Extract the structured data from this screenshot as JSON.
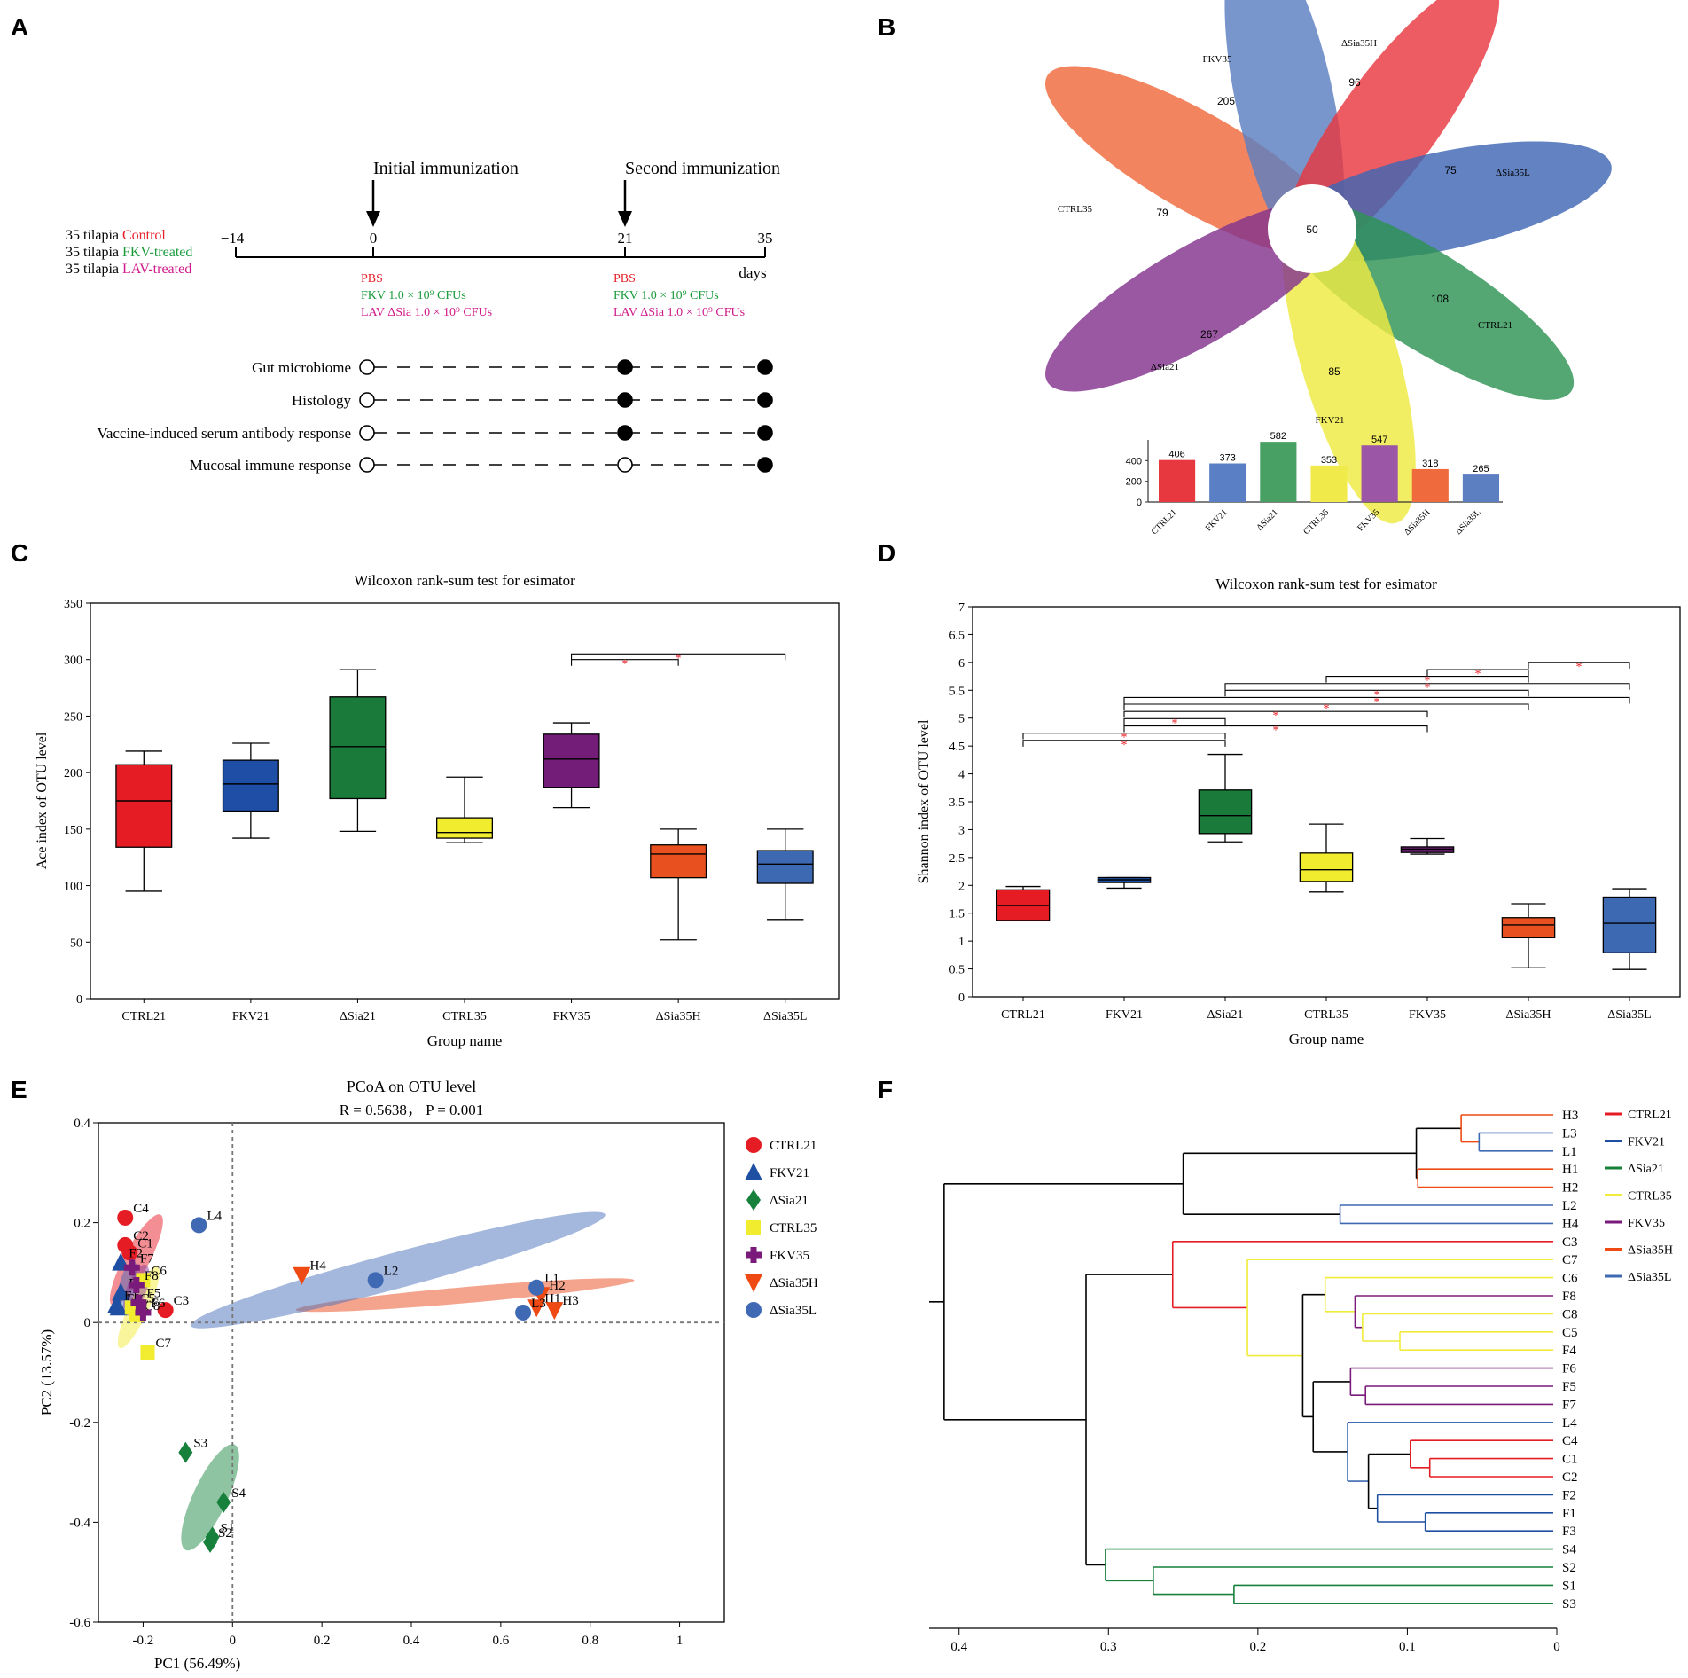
{
  "panel_labels": [
    "A",
    "B",
    "C",
    "D",
    "E",
    "F"
  ],
  "timeline": {
    "group_lines": [
      {
        "prefix": "35 tilapia",
        "label": "Control",
        "color": "#e8202a"
      },
      {
        "prefix": "35 tilapia",
        "label": "FKV-treated",
        "color": "#1a9b3c"
      },
      {
        "prefix": "35 tilapia",
        "label": "LAV-treated",
        "color": "#d0198a"
      }
    ],
    "ticks": [
      "−14",
      "0",
      "21",
      "35"
    ],
    "unit": "days",
    "events": [
      "Initial immunization",
      "Second immunization"
    ],
    "treatments_day0": [
      {
        "text": "PBS",
        "color": "#e8202a"
      },
      {
        "text": "FKV 1.0 × 10⁹ CFUs",
        "color": "#1a9b3c"
      },
      {
        "text": "LAV ΔSia 1.0 × 10⁹ CFUs",
        "color": "#d0198a"
      }
    ],
    "treatments_day21": [
      {
        "text": "PBS",
        "color": "#e8202a"
      },
      {
        "text": "FKV 1.0 × 10⁹ CFUs",
        "color": "#1a9b3c"
      },
      {
        "text": "LAV ΔSia 1.0 × 10⁹ CFUs",
        "color": "#d0198a"
      }
    ],
    "assays": [
      {
        "label": "Gut microbiome",
        "day0": false,
        "day21": true,
        "day35": true
      },
      {
        "label": "Histology",
        "day0": false,
        "day21": true,
        "day35": true
      },
      {
        "label": "Vaccine-induced serum antibody response",
        "day0": false,
        "day21": true,
        "day35": true
      },
      {
        "label": "Mucosal immune response",
        "day0": false,
        "day21": false,
        "day35": true
      }
    ]
  },
  "colors": {
    "CTRL21": "#e8202a",
    "FKV21": "#1f4fa3",
    "ΔSia21": "#17813c",
    "CTRL35": "#f2ec2f",
    "FKV35": "#7a1a7a",
    "ΔSia35H": "#ec4d1b",
    "ΔSia35L": "#3f6ab3"
  },
  "chart_data": [
    {
      "type": "flower",
      "title": "",
      "core_label": "50",
      "petals": [
        {
          "name": "ΔSia35H",
          "unique": 96,
          "color": "#ef6a3c"
        },
        {
          "name": "ΔSia35L",
          "unique": 75,
          "color": "#5b7fc1"
        },
        {
          "name": "CTRL21",
          "unique": 108,
          "color": "#e8383f"
        },
        {
          "name": "FKV21",
          "unique": 85,
          "color": "#3f66b3"
        },
        {
          "name": "ΔSia21",
          "unique": 267,
          "color": "#2e9254"
        },
        {
          "name": "CTRL35",
          "unique": 79,
          "color": "#eeea42"
        },
        {
          "name": "FKV35",
          "unique": 205,
          "color": "#84338f"
        }
      ],
      "bar": {
        "categories": [
          "CTRL21",
          "FKV21",
          "ΔSia21",
          "CTRL35",
          "FKV35",
          "ΔSia35H",
          "ΔSia35L"
        ],
        "values": [
          406,
          373,
          582,
          353,
          547,
          318,
          265
        ],
        "ylim": [
          0,
          600
        ],
        "yticks": [
          "0",
          "200",
          "400"
        ]
      }
    },
    {
      "type": "box",
      "title": "Wilcoxon rank-sum test for esimator",
      "xlabel": "Group name",
      "ylabel": "Ace index of OTU level",
      "ylim": [
        0,
        350
      ],
      "yticks": [
        "0",
        "50",
        "100",
        "150",
        "200",
        "250",
        "300",
        "350"
      ],
      "categories": [
        "CTRL21",
        "FKV21",
        "ΔSia21",
        "CTRL35",
        "FKV35",
        "ΔSia35H",
        "ΔSia35L"
      ],
      "boxes": [
        {
          "min": 95,
          "q1": 134,
          "median": 175,
          "q3": 207,
          "max": 219
        },
        {
          "min": 142,
          "q1": 166,
          "median": 190,
          "q3": 211,
          "max": 226
        },
        {
          "min": 148,
          "q1": 177,
          "median": 223,
          "q3": 267,
          "max": 291
        },
        {
          "min": 138,
          "q1": 142,
          "median": 147,
          "q3": 160,
          "max": 196
        },
        {
          "min": 169,
          "q1": 187,
          "median": 212,
          "q3": 234,
          "max": 244
        },
        {
          "min": 52,
          "q1": 107,
          "median": 128,
          "q3": 136,
          "max": 150
        },
        {
          "min": 70,
          "q1": 102,
          "median": 119,
          "q3": 131,
          "max": 150
        }
      ],
      "significance": [
        {
          "from": 4,
          "to": 5,
          "y": 300,
          "label": "*"
        },
        {
          "from": 4,
          "to": 6,
          "y": 305,
          "label": "*"
        }
      ]
    },
    {
      "type": "box",
      "title": "Wilcoxon rank-sum test for esimator",
      "xlabel": "Group name",
      "ylabel": "Shannon index of OTU level",
      "ylim": [
        0,
        7
      ],
      "yticks": [
        "0",
        "0.5",
        "1",
        "1.5",
        "2",
        "2.5",
        "3",
        "3.5",
        "4",
        "4.5",
        "5",
        "5.5",
        "6",
        "6.5",
        "7"
      ],
      "categories": [
        "CTRL21",
        "FKV21",
        "ΔSia21",
        "CTRL35",
        "FKV35",
        "ΔSia35H",
        "ΔSia35L"
      ],
      "boxes": [
        {
          "min": 1.37,
          "q1": 1.37,
          "median": 1.64,
          "q3": 1.92,
          "max": 1.98
        },
        {
          "min": 1.95,
          "q1": 2.05,
          "median": 2.1,
          "q3": 2.14,
          "max": 2.14
        },
        {
          "min": 2.78,
          "q1": 2.93,
          "median": 3.25,
          "q3": 3.71,
          "max": 4.35
        },
        {
          "min": 1.88,
          "q1": 2.07,
          "median": 2.28,
          "q3": 2.58,
          "max": 3.1
        },
        {
          "min": 2.56,
          "q1": 2.59,
          "median": 2.65,
          "q3": 2.69,
          "max": 2.84
        },
        {
          "min": 0.52,
          "q1": 1.06,
          "median": 1.29,
          "q3": 1.42,
          "max": 1.67
        },
        {
          "min": 0.49,
          "q1": 0.79,
          "median": 1.32,
          "q3": 1.79,
          "max": 1.94
        }
      ],
      "significance": [
        {
          "from": 5,
          "to": 6,
          "y": 6.0,
          "label": "*"
        },
        {
          "from": 4,
          "to": 5,
          "y": 5.87,
          "label": "*"
        },
        {
          "from": 3,
          "to": 5,
          "y": 5.75,
          "label": "*"
        },
        {
          "from": 2,
          "to": 6,
          "y": 5.62,
          "label": "*"
        },
        {
          "from": 2,
          "to": 5,
          "y": 5.5,
          "label": "*"
        },
        {
          "from": 1,
          "to": 6,
          "y": 5.37,
          "label": "*"
        },
        {
          "from": 1,
          "to": 5,
          "y": 5.25,
          "label": "*"
        },
        {
          "from": 1,
          "to": 4,
          "y": 5.12,
          "label": "*"
        },
        {
          "from": 1,
          "to": 2,
          "y": 4.99,
          "label": "*"
        },
        {
          "from": 1,
          "to": 4,
          "y": 4.86,
          "label": "*"
        },
        {
          "from": 0,
          "to": 2,
          "y": 4.73,
          "label": "*"
        },
        {
          "from": 0,
          "to": 2,
          "y": 4.6,
          "label": "*"
        }
      ]
    },
    {
      "type": "scatter",
      "title": "PCoA on OTU level",
      "subtitle": "R = 0.5638， P = 0.001",
      "xlabel": "PC1 (56.49%)",
      "ylabel": "PC2 (13.57%)",
      "xlim": [
        -0.3,
        1.1
      ],
      "ylim": [
        -0.6,
        0.4
      ],
      "xticks": [
        "-0.2",
        "0",
        "0.2",
        "0.4",
        "0.6",
        "0.8",
        "1"
      ],
      "yticks": [
        "-0.6",
        "-0.4",
        "-0.2",
        "0",
        "0.2",
        "0.4"
      ],
      "series": [
        {
          "name": "CTRL21",
          "marker": "circle",
          "points": [
            {
              "label": "C4",
              "x": -0.24,
              "y": 0.21
            },
            {
              "label": "C2",
              "x": -0.24,
              "y": 0.155
            },
            {
              "label": "C1",
              "x": -0.23,
              "y": 0.14
            },
            {
              "label": "C3",
              "x": -0.15,
              "y": 0.025
            }
          ]
        },
        {
          "name": "FKV21",
          "marker": "triangle",
          "points": [
            {
              "label": "F2",
              "x": -0.25,
              "y": 0.12
            },
            {
              "label": "F4",
              "x": -0.25,
              "y": 0.06
            },
            {
              "label": "F1",
              "x": -0.26,
              "y": 0.035
            },
            {
              "label": "F3",
              "x": -0.255,
              "y": 0.03
            }
          ]
        },
        {
          "name": "ΔSia21",
          "marker": "diamond",
          "points": [
            {
              "label": "S3",
              "x": -0.105,
              "y": -0.26
            },
            {
              "label": "S4",
              "x": -0.02,
              "y": -0.36
            },
            {
              "label": "S1",
              "x": -0.045,
              "y": -0.43
            },
            {
              "label": "S2",
              "x": -0.05,
              "y": -0.44
            }
          ]
        },
        {
          "name": "CTRL35",
          "marker": "square",
          "points": [
            {
              "label": "C6",
              "x": -0.2,
              "y": 0.085
            },
            {
              "label": "C5",
              "x": -0.225,
              "y": 0.03
            },
            {
              "label": "C8",
              "x": -0.215,
              "y": 0.015
            },
            {
              "label": "C7",
              "x": -0.19,
              "y": -0.06
            }
          ]
        },
        {
          "name": "FKV35",
          "marker": "cross",
          "points": [
            {
              "label": "F7",
              "x": -0.225,
              "y": 0.11
            },
            {
              "label": "F8",
              "x": -0.215,
              "y": 0.075
            },
            {
              "label": "F5",
              "x": -0.21,
              "y": 0.04
            },
            {
              "label": "F6",
              "x": -0.2,
              "y": 0.02
            }
          ]
        },
        {
          "name": "ΔSia35H",
          "marker": "triangle-down",
          "points": [
            {
              "label": "H4",
              "x": 0.155,
              "y": 0.095
            },
            {
              "label": "H2",
              "x": 0.69,
              "y": 0.055
            },
            {
              "label": "H1",
              "x": 0.68,
              "y": 0.03
            },
            {
              "label": "H3",
              "x": 0.72,
              "y": 0.025
            }
          ]
        },
        {
          "name": "ΔSia35L",
          "marker": "circle",
          "points": [
            {
              "label": "L4",
              "x": -0.075,
              "y": 0.195
            },
            {
              "label": "L2",
              "x": 0.32,
              "y": 0.085
            },
            {
              "label": "L1",
              "x": 0.68,
              "y": 0.07
            },
            {
              "label": "L3",
              "x": 0.65,
              "y": 0.02
            }
          ]
        }
      ],
      "ellipses": [
        {
          "group": "CTRL21",
          "cx": -0.215,
          "cy": 0.125,
          "rx": 0.115,
          "ry": 0.028,
          "angle_deg": -62
        },
        {
          "group": "FKV21",
          "cx": -0.235,
          "cy": 0.075,
          "rx": 0.055,
          "ry": 0.018,
          "angle_deg": -75
        },
        {
          "group": "ΔSia21",
          "cx": -0.05,
          "cy": -0.35,
          "rx": 0.13,
          "ry": 0.038,
          "angle_deg": -65
        },
        {
          "group": "CTRL35",
          "cx": -0.21,
          "cy": 0.03,
          "rx": 0.1,
          "ry": 0.022,
          "angle_deg": -65
        },
        {
          "group": "FKV35",
          "cx": -0.215,
          "cy": 0.065,
          "rx": 0.06,
          "ry": 0.022,
          "angle_deg": -70
        },
        {
          "group": "ΔSia35H",
          "cx": 0.52,
          "cy": 0.055,
          "rx": 0.38,
          "ry": 0.018,
          "angle_deg": -5
        },
        {
          "group": "ΔSia35L",
          "cx": 0.37,
          "cy": 0.105,
          "rx": 0.48,
          "ry": 0.04,
          "angle_deg": -15
        }
      ]
    },
    {
      "type": "dendrogram",
      "xlim": [
        0.42,
        0
      ],
      "xticks": [
        "0.4",
        "0.3",
        "0.2",
        "0.1",
        "0"
      ],
      "leaves": [
        "H3",
        "L3",
        "L1",
        "H1",
        "H2",
        "L2",
        "H4",
        "C3",
        "C7",
        "C6",
        "F8",
        "C8",
        "C5",
        "F4",
        "F6",
        "F5",
        "F7",
        "L4",
        "C4",
        "C1",
        "C2",
        "F2",
        "F1",
        "F3",
        "S4",
        "S2",
        "S1",
        "S3"
      ],
      "legend": [
        "CTRL21",
        "FKV21",
        "ΔSia21",
        "CTRL35",
        "FKV35",
        "ΔSia35H",
        "ΔSia35L"
      ]
    }
  ]
}
